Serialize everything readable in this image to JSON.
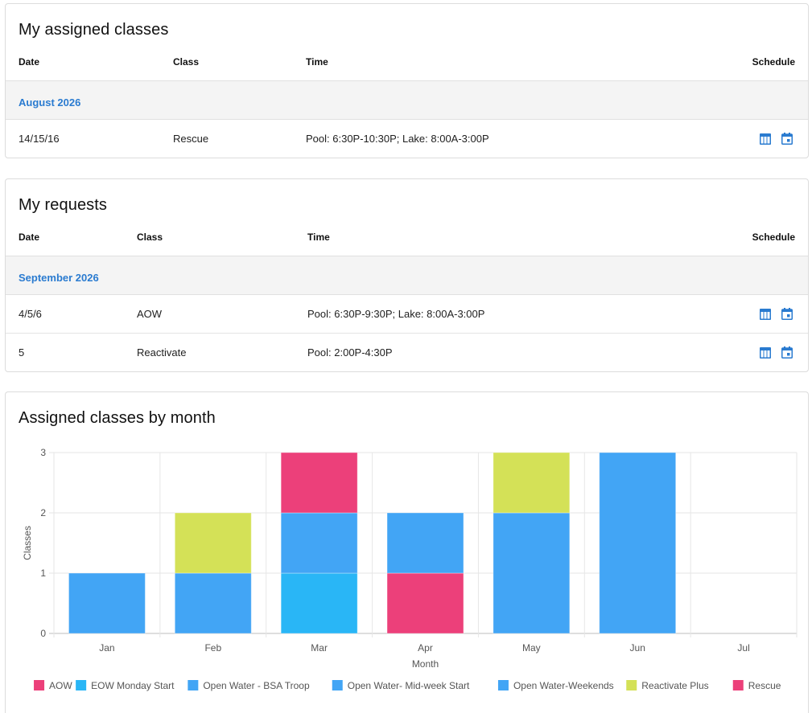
{
  "assigned": {
    "title": "My assigned classes",
    "columns": [
      "Date",
      "Class",
      "Time",
      "Schedule"
    ],
    "month": "August 2026",
    "rows": [
      {
        "date": "14/15/16",
        "class": "Rescue",
        "time": "Pool: 6:30P-10:30P; Lake: 8:00A-3:00P"
      }
    ]
  },
  "requests": {
    "title": "My requests",
    "columns": [
      "Date",
      "Class",
      "Time",
      "Schedule"
    ],
    "month": "September 2026",
    "rows": [
      {
        "date": "4/5/6",
        "class": "AOW",
        "time": "Pool: 6:30P-9:30P; Lake: 8:00A-3:00P"
      },
      {
        "date": "5",
        "class": "Reactivate",
        "time": "Pool: 2:00P-4:30P"
      }
    ]
  },
  "chart_section": {
    "title": "Assigned classes by month"
  },
  "icons": {
    "table_view": "table-view-icon",
    "calendar": "calendar-icon",
    "accent": "#2a7bd0"
  },
  "chart_data": {
    "type": "bar",
    "stacked": true,
    "categories": [
      "Jan",
      "Feb",
      "Mar",
      "Apr",
      "May",
      "Jun",
      "Jul"
    ],
    "xlabel": "Month",
    "ylabel": "Classes",
    "ylim": [
      0,
      3
    ],
    "yticks": [
      0,
      1,
      2,
      3
    ],
    "grid": true,
    "legend_position": "bottom",
    "series": [
      {
        "name": "AOW",
        "color": "#ec407a",
        "values": [
          0,
          0,
          0,
          1,
          0,
          0,
          0
        ]
      },
      {
        "name": "EOW Monday Start",
        "color": "#29b6f6",
        "values": [
          0,
          0,
          1,
          0,
          0,
          0,
          0
        ]
      },
      {
        "name": "Open Water - BSA Troop",
        "color": "#42a5f5",
        "values": [
          0,
          0,
          0,
          0,
          0,
          0,
          0
        ]
      },
      {
        "name": "Open Water- Mid-week Start",
        "color": "#42a5f5",
        "values": [
          0,
          0,
          0,
          0,
          0,
          0,
          0
        ]
      },
      {
        "name": "Open Water-Weekends",
        "color": "#42a5f5",
        "values": [
          1,
          1,
          1,
          1,
          2,
          3,
          0
        ]
      },
      {
        "name": "Reactivate Plus",
        "color": "#d4e157",
        "values": [
          0,
          1,
          0,
          0,
          1,
          0,
          0
        ]
      },
      {
        "name": "Rescue",
        "color": "#ec407a",
        "values": [
          0,
          0,
          1,
          0,
          0,
          0,
          0
        ]
      }
    ]
  }
}
